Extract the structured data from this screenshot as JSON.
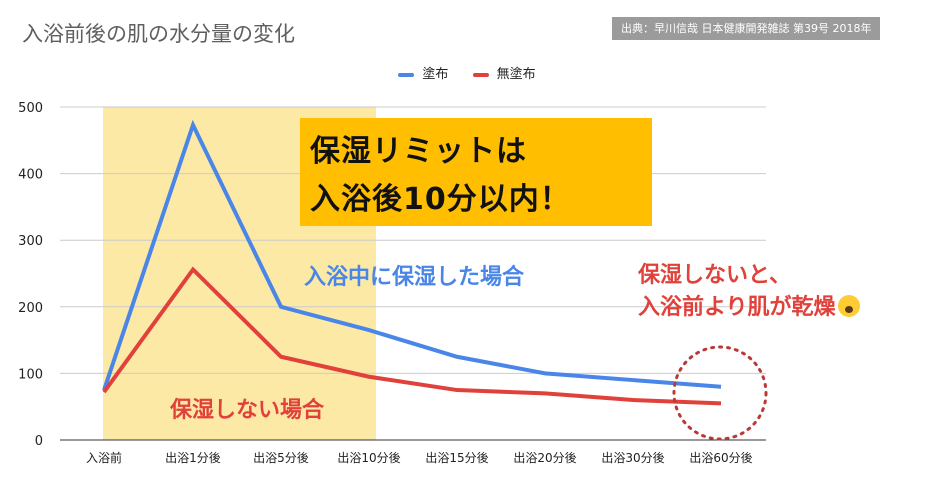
{
  "header": {
    "title": "入浴前後の肌の水分量の変化",
    "source": "出典：早川信哉 日本健康開発雑誌 第39号 2018年"
  },
  "chart_data": {
    "type": "line",
    "categories": [
      "入浴前",
      "出浴1分後",
      "出浴5分後",
      "出浴10分後",
      "出浴15分後",
      "出浴20分後",
      "出浴30分後",
      "出浴60分後"
    ],
    "series": [
      {
        "name": "塗布",
        "values": [
          75,
          473,
          200,
          165,
          125,
          100,
          90,
          80
        ],
        "color": "#4a86e8"
      },
      {
        "name": "無塗布",
        "values": [
          72,
          256,
          125,
          95,
          75,
          70,
          60,
          55
        ],
        "color": "#e0413a"
      }
    ],
    "yticks": [
      "0",
      "100",
      "200",
      "300",
      "400",
      "500"
    ],
    "ylim": [
      0,
      500
    ],
    "grid": true,
    "legend_position": "top-center",
    "highlight_band": {
      "from_category": 0,
      "to_category": 3,
      "color": "#fde9a6"
    }
  },
  "annotations": {
    "callout_line1": "保湿リミットは",
    "callout_line2": "入浴後10分以内！",
    "blue_note": "入浴中に保湿した場合",
    "red_note_line1": "保湿しないと、",
    "red_note_line2": "入浴前より肌が乾燥",
    "red_note_emoji": "scream-face-emoji",
    "no_moisture_note": "保湿しない場合"
  }
}
